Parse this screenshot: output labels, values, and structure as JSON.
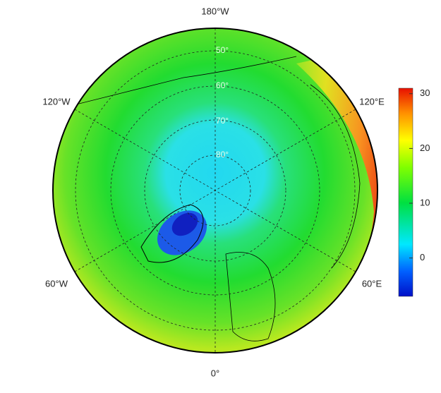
{
  "map": {
    "longitude_labels": [
      "180°W",
      "120°W",
      "120°E",
      "60°W",
      "60°E",
      "0°"
    ],
    "latitude_labels": [
      "50°",
      "60°",
      "70°",
      "80°"
    ],
    "colorbar": {
      "ylim": [
        -7,
        31
      ],
      "yticks": [
        0,
        10,
        20,
        30
      ]
    }
  }
}
